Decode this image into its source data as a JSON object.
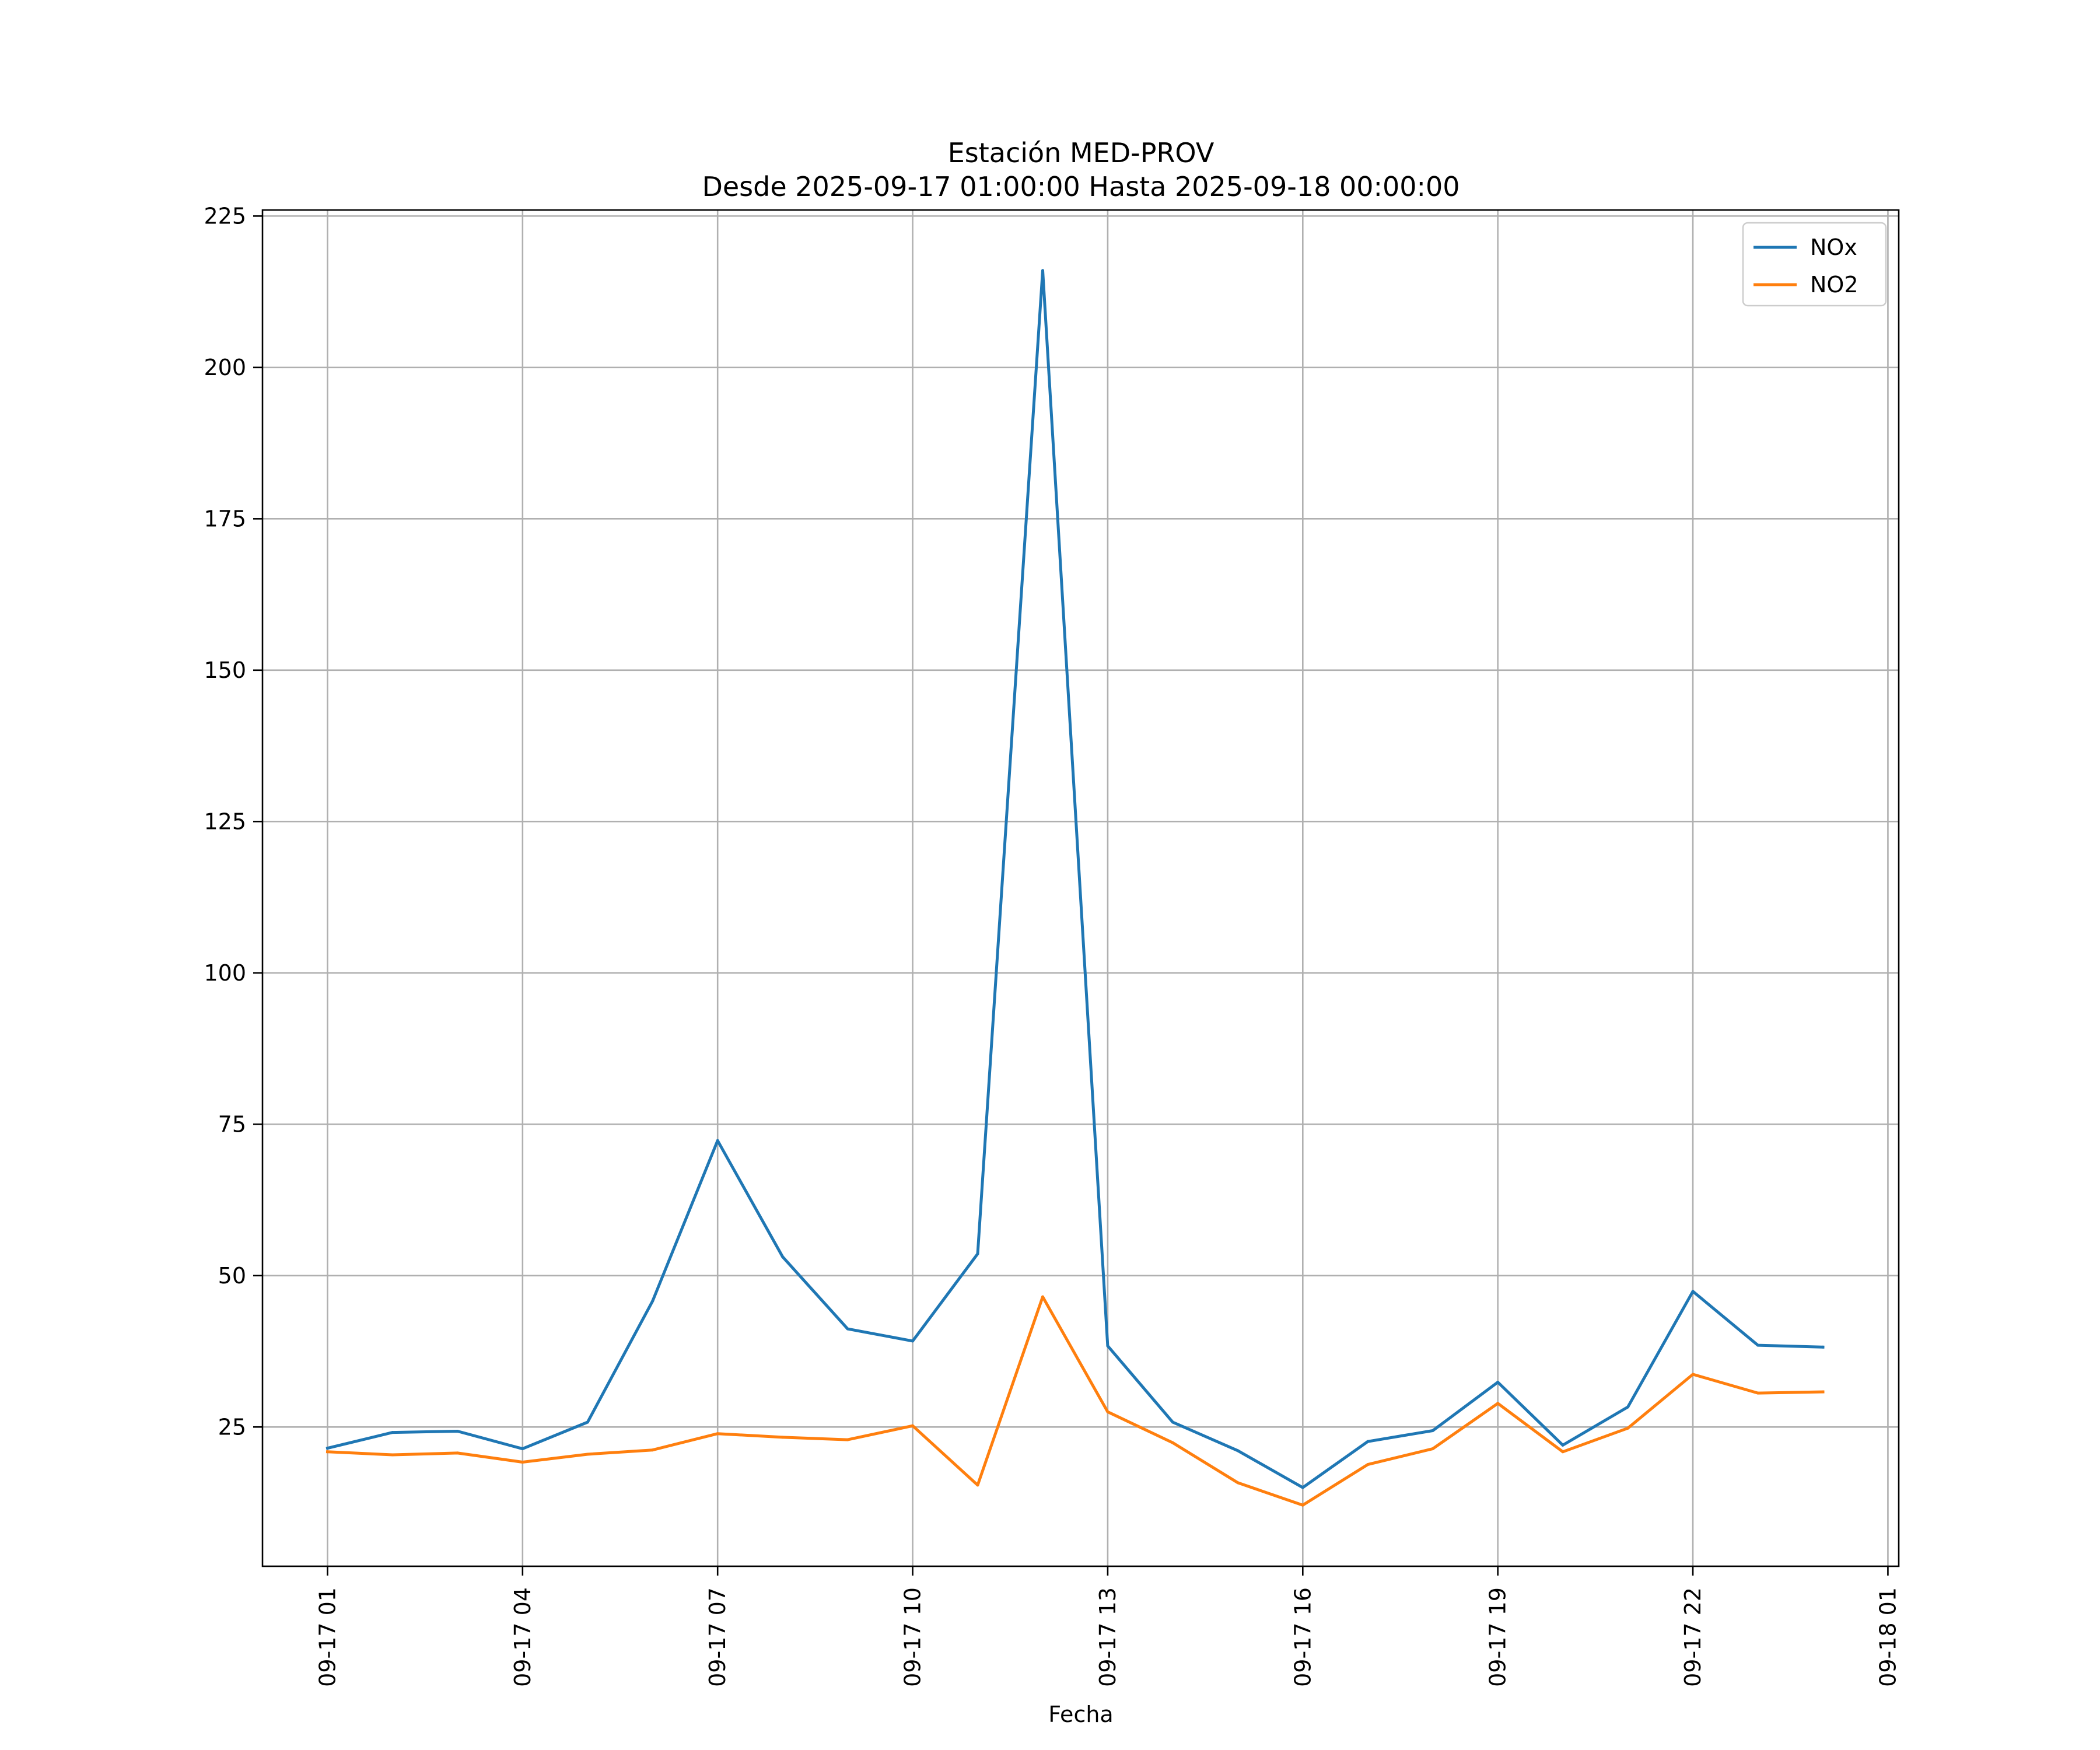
{
  "chart_data": {
    "type": "line",
    "title": "Estación MED-PROV",
    "subtitle": "Desde 2025-09-17 01:00:00 Hasta 2025-09-18 00:00:00",
    "xlabel": "Fecha",
    "ylabel": "",
    "x": [
      "2025-09-17 01:00",
      "2025-09-17 02:00",
      "2025-09-17 03:00",
      "2025-09-17 04:00",
      "2025-09-17 05:00",
      "2025-09-17 06:00",
      "2025-09-17 07:00",
      "2025-09-17 08:00",
      "2025-09-17 09:00",
      "2025-09-17 10:00",
      "2025-09-17 11:00",
      "2025-09-17 12:00",
      "2025-09-17 13:00",
      "2025-09-17 14:00",
      "2025-09-17 15:00",
      "2025-09-17 16:00",
      "2025-09-17 17:00",
      "2025-09-17 18:00",
      "2025-09-17 19:00",
      "2025-09-17 20:00",
      "2025-09-17 21:00",
      "2025-09-17 22:00",
      "2025-09-17 23:00",
      "2025-09-18 00:00"
    ],
    "xlim": [
      "2025-09-17 00:00",
      "2025-09-18 01:10"
    ],
    "ylim": [
      2,
      226
    ],
    "xticks": [
      {
        "value": "2025-09-17 01:00",
        "label": "09-17 01"
      },
      {
        "value": "2025-09-17 04:00",
        "label": "09-17 04"
      },
      {
        "value": "2025-09-17 07:00",
        "label": "09-17 07"
      },
      {
        "value": "2025-09-17 10:00",
        "label": "09-17 10"
      },
      {
        "value": "2025-09-17 13:00",
        "label": "09-17 13"
      },
      {
        "value": "2025-09-17 16:00",
        "label": "09-17 16"
      },
      {
        "value": "2025-09-17 19:00",
        "label": "09-17 19"
      },
      {
        "value": "2025-09-17 22:00",
        "label": "09-17 22"
      },
      {
        "value": "2025-09-18 01:00",
        "label": "09-18 01"
      }
    ],
    "yticks": [
      {
        "value": 25,
        "label": "25"
      },
      {
        "value": 50,
        "label": "50"
      },
      {
        "value": 75,
        "label": "75"
      },
      {
        "value": 100,
        "label": "100"
      },
      {
        "value": 125,
        "label": "125"
      },
      {
        "value": 150,
        "label": "150"
      },
      {
        "value": 175,
        "label": "175"
      },
      {
        "value": 200,
        "label": "200"
      },
      {
        "value": 225,
        "label": "225"
      }
    ],
    "grid": true,
    "legend_position": "top-right",
    "series": [
      {
        "name": "NOx",
        "color": "#1f77b4",
        "values": [
          21.5,
          24.1,
          24.3,
          21.4,
          25.8,
          45.8,
          72.3,
          53.1,
          41.2,
          39.2,
          53.6,
          216.0,
          38.4,
          25.8,
          21.1,
          15.0,
          22.6,
          24.4,
          32.4,
          22.0,
          28.3,
          47.4,
          38.5,
          38.2
        ]
      },
      {
        "name": "NO2",
        "color": "#ff7f0e",
        "values": [
          20.9,
          20.4,
          20.7,
          19.2,
          20.5,
          21.2,
          23.9,
          23.3,
          22.9,
          25.2,
          15.4,
          46.5,
          27.5,
          22.4,
          15.8,
          12.1,
          18.8,
          21.4,
          28.9,
          20.9,
          24.8,
          33.7,
          30.6,
          30.8
        ]
      }
    ]
  }
}
